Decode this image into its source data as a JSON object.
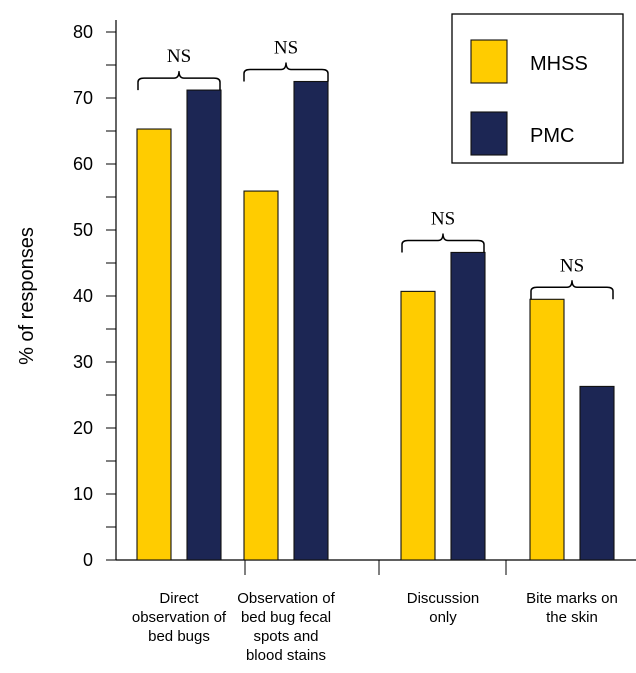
{
  "chart_data": {
    "type": "bar",
    "title": "",
    "xlabel": "",
    "ylabel": "% of responses",
    "ylim": [
      0,
      80
    ],
    "yticks": [
      0,
      10,
      20,
      30,
      40,
      50,
      60,
      70,
      80
    ],
    "categories": [
      [
        "Direct",
        "observation of",
        "bed bugs"
      ],
      [
        "Observation of",
        "bed bug fecal",
        "spots and",
        "blood stains"
      ],
      [
        "Discussion",
        "only"
      ],
      [
        "Bite marks on",
        "the skin"
      ]
    ],
    "series": [
      {
        "name": "MHSS",
        "color": "#FFCC00",
        "values": [
          65.3,
          55.9,
          40.7,
          39.5
        ]
      },
      {
        "name": "PMC",
        "color": "#1C2654",
        "values": [
          71.2,
          72.5,
          46.6,
          26.3
        ]
      }
    ],
    "annotations": [
      "NS",
      "NS",
      "NS",
      "NS"
    ],
    "legend_position": "top-right",
    "grid": false
  }
}
